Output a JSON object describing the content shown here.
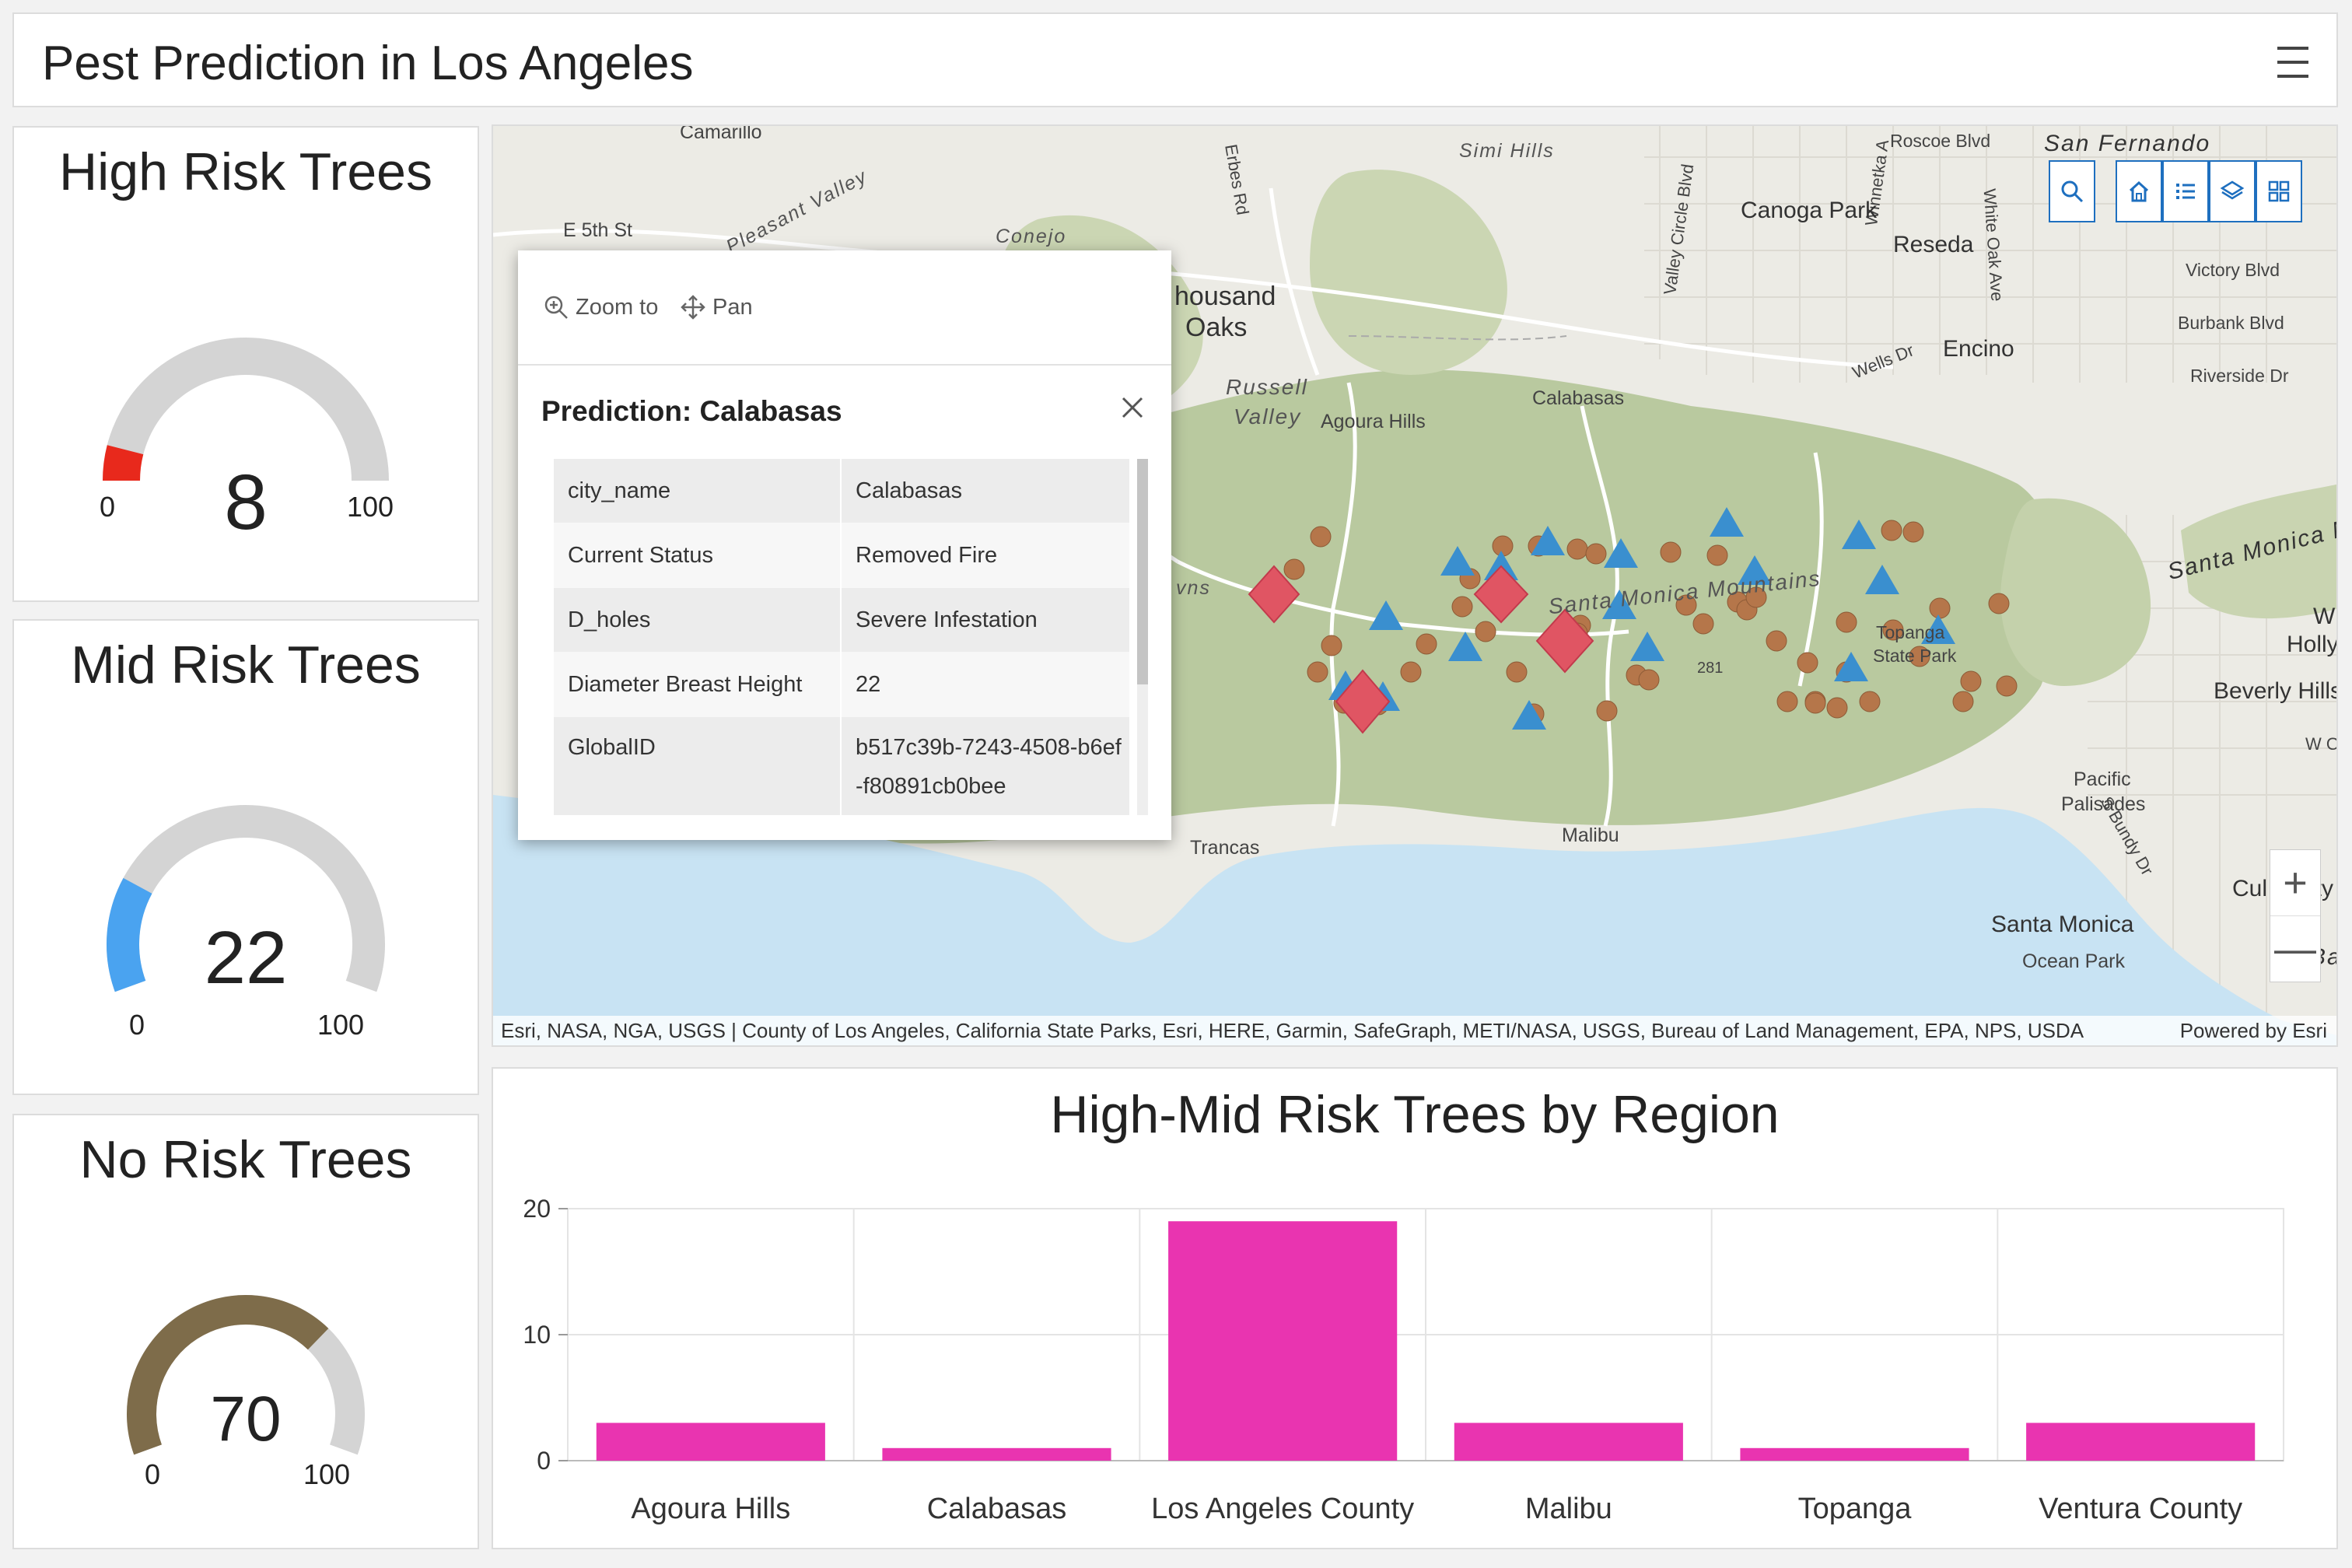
{
  "header": {
    "title": "Pest Prediction in Los Angeles",
    "menu_icon": "hamburger-menu-icon"
  },
  "gauges": [
    {
      "title": "High Risk Trees",
      "value": 8,
      "value_text": "8",
      "min": 0,
      "max": 100,
      "min_text": "0",
      "max_text": "100",
      "color": "#e8291c"
    },
    {
      "title": "Mid Risk Trees",
      "value": 22,
      "value_text": "22",
      "min": 0,
      "max": 100,
      "min_text": "0",
      "max_text": "100",
      "color": "#4aa3f0"
    },
    {
      "title": "No Risk Trees",
      "value": 70,
      "value_text": "70",
      "min": 0,
      "max": 100,
      "min_text": "0",
      "max_text": "100",
      "color": "#7e6c4a"
    }
  ],
  "map": {
    "labels": {
      "camarillo": "Camarillo",
      "pleasant_valley": "Pleasant Valley",
      "e5th": "E 5th St",
      "conejo": "Conejo",
      "erbes": "Erbes Rd",
      "simi_hills": "Simi Hills",
      "valley_circle": "Valley Circle Blvd",
      "winnetka": "Winnetka A",
      "roscoe": "Roscoe Blvd",
      "san_fernando": "San Fernando",
      "canoga_park": "Canoga Park",
      "reseda": "Reseda",
      "white_oak": "White Oak Ave",
      "victory": "Victory Blvd",
      "burbank": "Burbank Blvd",
      "riverside": "Riverside Dr",
      "wells": "Wells Dr",
      "encino": "Encino",
      "thousand_oaks_1": "housand",
      "thousand_oaks_2": "Oaks",
      "russell": "Russell",
      "valley": "Valley",
      "agoura_hills": "Agoura Hills",
      "calabasas": "Calabasas",
      "santa_monica_mtns": "Santa Monica Mountains",
      "topanga_1": "Topanga",
      "topanga_2": "State Park",
      "santa_monica_n": "Santa Monica M",
      "holly": "Holly",
      "beverly": "Beverly Hills",
      "pacific_1": "Pacific",
      "pacific_2": "Palisades",
      "bundy": "S Bundy Dr",
      "santa_monica": "Santa Monica",
      "ocean_park": "Ocean Park",
      "malibu": "Malibu",
      "trancas": "Trancas",
      "culver": "Cul",
      "culver2": "ity",
      "ba": "Ba",
      "w": "W",
      "wo": "W O",
      "vns": "vns",
      "num": "281"
    },
    "attribution": "Esri, NASA, NGA, USGS | County of Los Angeles, California State Parks, Esri, HERE, Garmin, SafeGraph, METI/NASA, USGS, Bureau of Land Management, EPA, NPS, USDA",
    "powered_by": "Powered by Esri",
    "colors": {
      "water": "#c8e3f3",
      "land": "#ecebe5",
      "vegetation": "#b8c9a0",
      "point": "#b5764a",
      "triangle": "#3a8fcf",
      "diamond": "#e05563"
    },
    "toolbar": [
      "search-icon",
      "home-icon",
      "legend-icon",
      "layers-icon",
      "basemap-gallery-icon"
    ],
    "zoom": {
      "in": "+",
      "out": "—"
    }
  },
  "popup": {
    "actions": {
      "zoom_to": "Zoom to",
      "pan": "Pan"
    },
    "title": "Prediction: Calabasas",
    "rows": [
      {
        "key": "city_name",
        "value": "Calabasas"
      },
      {
        "key": "Current Status",
        "value": "Removed Fire"
      },
      {
        "key": "D_holes",
        "value": "Severe Infestation"
      },
      {
        "key": "Diameter Breast Height",
        "value": "22"
      },
      {
        "key": "GlobalID",
        "value": "b517c39b-7243-4508-b6ef-f80891cb0bee"
      }
    ]
  },
  "chart_data": {
    "type": "bar",
    "title": "High-Mid Risk Trees by Region",
    "categories": [
      "Agoura Hills",
      "Calabasas",
      "Los Angeles County",
      "Malibu",
      "Topanga",
      "Ventura County"
    ],
    "values": [
      3,
      1,
      19,
      3,
      1,
      3
    ],
    "ylim": [
      0,
      20
    ],
    "yticks": [
      0,
      10,
      20
    ],
    "color": "#e934b0",
    "grid": true,
    "xlabel": "",
    "ylabel": ""
  }
}
